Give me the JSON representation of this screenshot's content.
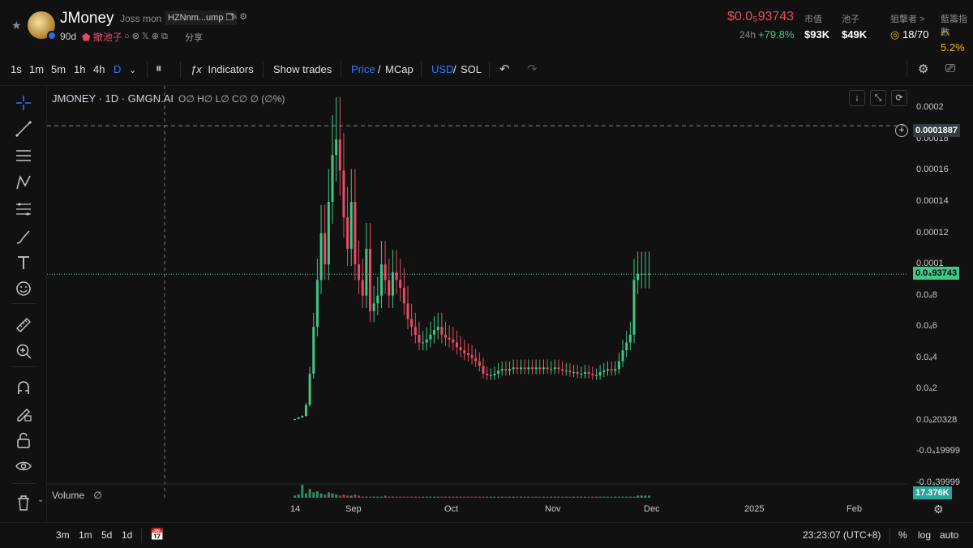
{
  "token": {
    "name": "JMoney",
    "subname": "Joss mon",
    "address": "HZNnm...ump",
    "age": "90d",
    "pool_label": "撤池子",
    "share_label": "分享"
  },
  "stats": {
    "price": "$0.0₅93743",
    "change_label": "24h",
    "change_value": "+79.8%",
    "mcap_label": "市值",
    "mcap_value": "$93K",
    "pool_label": "池子",
    "pool_value": "$49K",
    "holders_label": "狙擊者 >",
    "holders_value": "18/70",
    "risk_label": "藍籌指數",
    "risk_value": "5.2%"
  },
  "toolbar": {
    "intervals": [
      "1s",
      "1m",
      "5m",
      "1h",
      "4h",
      "D"
    ],
    "active_interval": "D",
    "indicators_label": "Indicators",
    "show_trades_label": "Show trades",
    "price_label": "Price",
    "mcap_label": "MCap",
    "usd_label": "USD",
    "sol_label": "SOL"
  },
  "chart": {
    "legend_title": "JMONEY · 1D · GMGN.AI",
    "legend_ohlc": "O∅ H∅ L∅ C∅ ∅ (∅%)",
    "y_ticks": [
      "0.0002",
      "0.00018",
      "0.00016",
      "0.00014",
      "0.00012",
      "0.0001",
      "0.0₄8",
      "0.0₄6",
      "0.0₄4",
      "0.0₄2",
      "0.0₉20328",
      "-0.0₄19999",
      "-0.0₄39999"
    ],
    "crosshair_price": "0.0001887",
    "last_price": "0.0₄93743",
    "volume_label": "Volume",
    "volume_value": "∅",
    "volume_badge": "17.376K",
    "x_ticks": [
      "14",
      "Sep",
      "Oct",
      "Nov",
      "Dec",
      "2025",
      "Feb"
    ],
    "colors": {
      "up": "#3fc785",
      "down": "#ea4a65",
      "background": "#111111"
    }
  },
  "chart_data": {
    "type": "candlestick",
    "x": [
      "Aug 14",
      "Aug 15",
      "Aug 16",
      "Aug 17",
      "Aug 18",
      "Aug 19",
      "Aug 20",
      "Aug 21",
      "Aug 22",
      "Aug 23",
      "Aug 24",
      "Aug 25",
      "Aug 26",
      "Aug 27",
      "Aug 28",
      "Aug 29",
      "Aug 30",
      "Aug 31",
      "Sep 1",
      "Sep 2",
      "Sep 3",
      "Sep 4",
      "Sep 5",
      "Sep 6",
      "Sep 7",
      "Sep 8",
      "Sep 9",
      "Sep 10",
      "Sep 11",
      "Sep 12",
      "Sep 13",
      "Sep 14",
      "Sep 15",
      "Sep 16",
      "Sep 17",
      "Sep 18",
      "Sep 19",
      "Sep 20",
      "Sep 21",
      "Sep 22",
      "Sep 23",
      "Sep 24",
      "Sep 25",
      "Sep 26",
      "Sep 27",
      "Sep 28",
      "Sep 29",
      "Sep 30",
      "Oct 1",
      "Oct 2",
      "Oct 3",
      "Oct 4",
      "Oct 5",
      "Oct 6",
      "Oct 7",
      "Oct 8",
      "Oct 9",
      "Oct 10",
      "Oct 11",
      "Oct 12",
      "Oct 13",
      "Oct 14",
      "Oct 15",
      "Oct 16",
      "Oct 17",
      "Oct 18",
      "Oct 19",
      "Oct 20",
      "Oct 21",
      "Oct 22",
      "Oct 23",
      "Oct 24",
      "Oct 25",
      "Oct 26",
      "Oct 27",
      "Oct 28",
      "Oct 29",
      "Oct 30",
      "Oct 31",
      "Nov 1",
      "Nov 2",
      "Nov 3",
      "Nov 4",
      "Nov 5",
      "Nov 6",
      "Nov 7",
      "Nov 8",
      "Nov 9",
      "Nov 10",
      "Nov 11",
      "Nov 12",
      "Nov 13",
      "Nov 14",
      "Nov 15",
      "Nov 16"
    ],
    "open": [
      1e-06,
      1e-06,
      2e-06,
      3e-06,
      1e-05,
      3e-05,
      6e-05,
      9e-05,
      0.00012,
      0.0001,
      0.00014,
      0.00017,
      0.00018,
      0.00016,
      0.00013,
      0.00011,
      0.00014,
      0.0001,
      9e-05,
      8e-05,
      0.00011,
      7e-05,
      7.5e-05,
      8e-05,
      0.0001,
      9e-05,
      8e-05,
      9.5e-05,
      9e-05,
      8.5e-05,
      7.5e-05,
      6.5e-05,
      6e-05,
      5.5e-05,
      5e-05,
      5e-05,
      5.2e-05,
      5.5e-05,
      5.8e-05,
      6e-05,
      5.5e-05,
      5.3e-05,
      5.2e-05,
      5e-05,
      4.7e-05,
      4.5e-05,
      4.3e-05,
      4.2e-05,
      4e-05,
      3.8e-05,
      3.5e-05,
      3e-05,
      2.9e-05,
      2.9e-05,
      3e-05,
      3.2e-05,
      3.3e-05,
      3.2e-05,
      3.3e-05,
      3.4e-05,
      3.3e-05,
      3.4e-05,
      3.3e-05,
      3.4e-05,
      3.3e-05,
      3.4e-05,
      3.3e-05,
      3.4e-05,
      3.3e-05,
      3.3e-05,
      3.4e-05,
      3.3e-05,
      3.2e-05,
      3.2e-05,
      3.1e-05,
      3.1e-05,
      3e-05,
      3e-05,
      3.1e-05,
      3e-05,
      2.9e-05,
      2.9e-05,
      3.1e-05,
      3.2e-05,
      3.3e-05,
      3.2e-05,
      3.3e-05,
      3.8e-05,
      4.5e-05,
      5e-05,
      5.5e-05,
      9e-05,
      9.4e-05,
      9.4e-05,
      9.4e-05
    ],
    "close": [
      1e-06,
      2e-06,
      3e-06,
      1e-05,
      3e-05,
      6e-05,
      9e-05,
      0.00012,
      0.0001,
      0.00014,
      0.00017,
      0.00018,
      0.00016,
      0.00013,
      0.00011,
      0.00014,
      0.0001,
      9e-05,
      8e-05,
      0.00011,
      7e-05,
      7.5e-05,
      8e-05,
      0.0001,
      9e-05,
      8e-05,
      9.5e-05,
      9e-05,
      8.5e-05,
      7.5e-05,
      6.5e-05,
      6e-05,
      5.5e-05,
      5e-05,
      5e-05,
      5.2e-05,
      5.5e-05,
      5.8e-05,
      6e-05,
      5.5e-05,
      5.3e-05,
      5.2e-05,
      5e-05,
      4.7e-05,
      4.5e-05,
      4.3e-05,
      4.2e-05,
      4e-05,
      3.8e-05,
      3.5e-05,
      3e-05,
      2.9e-05,
      2.9e-05,
      3e-05,
      3.2e-05,
      3.3e-05,
      3.2e-05,
      3.3e-05,
      3.4e-05,
      3.3e-05,
      3.4e-05,
      3.3e-05,
      3.4e-05,
      3.3e-05,
      3.4e-05,
      3.3e-05,
      3.4e-05,
      3.3e-05,
      3.3e-05,
      3.4e-05,
      3.3e-05,
      3.2e-05,
      3.2e-05,
      3.1e-05,
      3.1e-05,
      3e-05,
      3e-05,
      3.1e-05,
      3e-05,
      2.9e-05,
      2.9e-05,
      3.1e-05,
      3.2e-05,
      3.3e-05,
      3.2e-05,
      3.3e-05,
      3.8e-05,
      4.5e-05,
      5e-05,
      5.5e-05,
      9e-05,
      9.4e-05,
      9.4e-05,
      9.4e-05,
      9.4e-05
    ],
    "y_range": [
      -4e-05,
      0.00021
    ],
    "crosshair_y": 0.0001887,
    "last_price": 9.37e-05,
    "volume_series": [
      2,
      3,
      12,
      4,
      8,
      5,
      6,
      4,
      3,
      5,
      4,
      3,
      2,
      3,
      2,
      2,
      3,
      2,
      1,
      1,
      1,
      1,
      1,
      1,
      2,
      1,
      1,
      1,
      1,
      1,
      1,
      1,
      1,
      1,
      1,
      1,
      1,
      1,
      1,
      1,
      1,
      1,
      1,
      1,
      1,
      1,
      1,
      1,
      1,
      1,
      1,
      1,
      1,
      1,
      1,
      1,
      1,
      1,
      1,
      1,
      1,
      1,
      1,
      1,
      1,
      1,
      1,
      1,
      1,
      1,
      1,
      1,
      1,
      1,
      1,
      1,
      1,
      1,
      1,
      1,
      1,
      1,
      1,
      1,
      1,
      1,
      1,
      1,
      1,
      1,
      1,
      2,
      2,
      2,
      2
    ],
    "grid": false,
    "x_axis": "date",
    "legend_position": "top-left"
  },
  "bottom": {
    "ranges": [
      "3m",
      "1m",
      "5d",
      "1d"
    ],
    "time": "23:23:07 (UTC+8)",
    "percent_label": "%",
    "log_label": "log",
    "auto_label": "auto"
  }
}
